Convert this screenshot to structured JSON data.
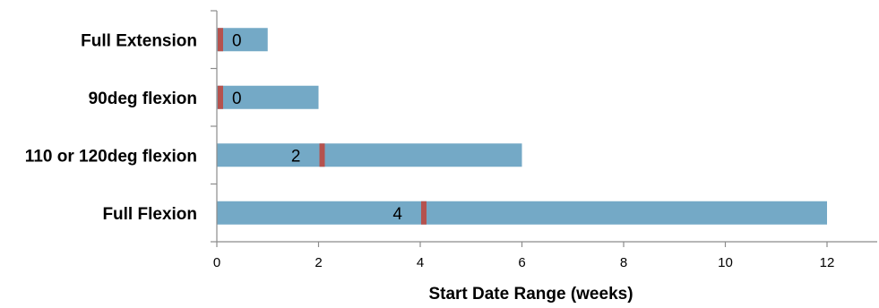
{
  "chart_data": {
    "type": "bar",
    "orientation": "horizontal",
    "categories": [
      "Full Extension",
      "90deg flexion",
      "110 or 120deg flexion",
      "Full Flexion"
    ],
    "range_start": [
      0,
      0,
      0,
      0
    ],
    "range_end": [
      1,
      2,
      6,
      12
    ],
    "marker_values": [
      0,
      0,
      2,
      4
    ],
    "marker_labels": [
      "0",
      "0",
      "2",
      "4"
    ],
    "xlabel": "Start Date Range (weeks)",
    "xlim": [
      0,
      13
    ],
    "xticks": [
      0,
      2,
      4,
      6,
      8,
      10,
      12
    ],
    "grid": false,
    "legend": false,
    "colors": {
      "bar": "#74a9c6",
      "marker": "#b5524e"
    }
  }
}
